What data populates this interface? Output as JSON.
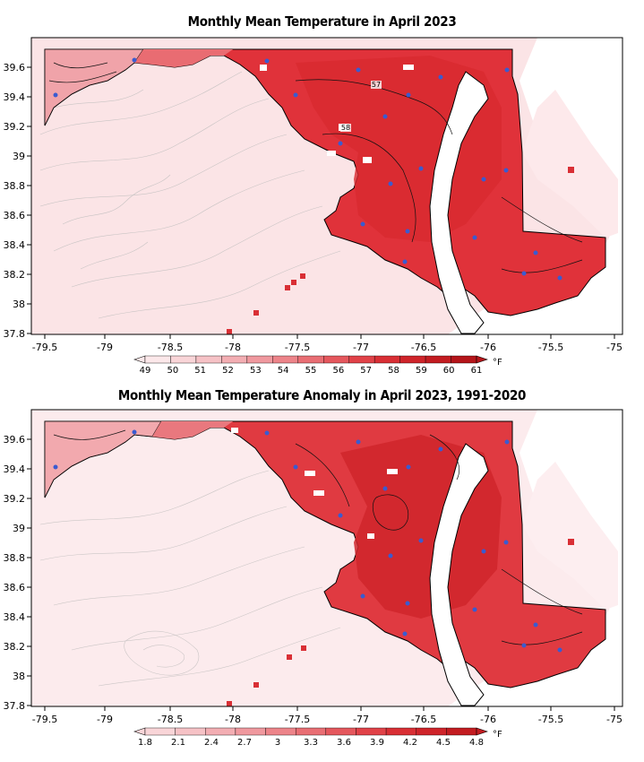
{
  "panels": [
    {
      "title": "Monthly Mean Temperature in April 2023",
      "contour_labels": [
        "57",
        "58"
      ],
      "colorbar": {
        "labels": [
          "49",
          "50",
          "51",
          "52",
          "53",
          "54",
          "55",
          "56",
          "57",
          "58",
          "59",
          "60",
          "61"
        ],
        "unit": "°F",
        "colors": [
          "#fce8ea",
          "#f9d5d8",
          "#f6c2c6",
          "#f3aeb3",
          "#f0999f",
          "#ed848a",
          "#e96e74",
          "#e5575d",
          "#e14248",
          "#d92f35",
          "#cf242a",
          "#c31c21",
          "#b5151a"
        ]
      }
    },
    {
      "title": "Monthly Mean Temperature Anomaly in April 2023, 1991-2020",
      "contour_labels": [],
      "colorbar": {
        "labels": [
          "1.8",
          "2.1",
          "2.4",
          "2.7",
          "3",
          "3.3",
          "3.6",
          "3.9",
          "4.2",
          "4.5",
          "4.8"
        ],
        "unit": "°F",
        "colors": [
          "#f9d5d8",
          "#f6c2c6",
          "#f3aeb3",
          "#f0999f",
          "#ed848a",
          "#e96e74",
          "#e5575d",
          "#e14248",
          "#d92f35",
          "#cf242a",
          "#c31c21"
        ]
      }
    }
  ],
  "x_ticks": [
    "-79.5",
    "-79",
    "-78.5",
    "-78",
    "-77.5",
    "-77",
    "-76.5",
    "-76",
    "-75.5",
    "-75"
  ],
  "y_ticks": [
    "39.6",
    "39.4",
    "39.2",
    "39",
    "38.8",
    "38.6",
    "38.4",
    "38.2",
    "38",
    "37.8"
  ],
  "colors": {
    "state_fill": "#e0323a",
    "state_fill_dark": "#d02a30",
    "surround_fill": "#fbe4e6",
    "west_fill": "#f4b8bd",
    "water": "#ffffff",
    "station_dot": "#3a5bd0"
  }
}
